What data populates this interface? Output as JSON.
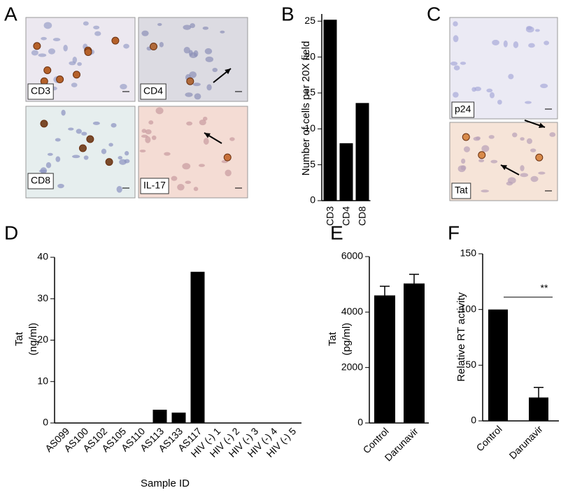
{
  "panel_letters": [
    "A",
    "B",
    "C",
    "D",
    "E",
    "F"
  ],
  "micrographs": {
    "A": [
      "CD3",
      "CD4",
      "CD8",
      "IL-17"
    ],
    "C": [
      "p24",
      "Tat"
    ]
  },
  "chart_data": [
    {
      "type": "bar",
      "categories": [
        "CD3",
        "CD4",
        "CD8"
      ],
      "values": [
        25.2,
        8,
        13.6
      ],
      "color": "#000000",
      "ylim": [
        0,
        26
      ],
      "yticks": [
        0,
        5,
        10,
        15,
        20,
        25
      ],
      "y_label": [
        "Number of cells per 20X field"
      ]
    },
    {
      "type": "bar",
      "categories": [
        "AS099",
        "AS100",
        "AS102",
        "AS105",
        "AS110",
        "AS113",
        "AS133",
        "AS117",
        "HIV (-) 1",
        "HIV (-) 2",
        "HIV (-) 3",
        "HIV (-) 4",
        "HIV (-) 5"
      ],
      "values": [
        0,
        0,
        0,
        0,
        0,
        3.2,
        2.5,
        36.5,
        0,
        0,
        0,
        0,
        0
      ],
      "color": "#000000",
      "ylim": [
        0,
        40
      ],
      "yticks": [
        0,
        10,
        20,
        30,
        40
      ],
      "y_label": [
        "Tat",
        "(ng/ml)"
      ],
      "x_label": "Sample ID"
    },
    {
      "type": "bar",
      "categories": [
        "Control",
        "Darunavir"
      ],
      "values": [
        4600,
        5030
      ],
      "errors": [
        330,
        330
      ],
      "color": "#000000",
      "ylim": [
        0,
        6000
      ],
      "yticks": [
        0,
        2000,
        4000,
        6000
      ],
      "y_label": [
        "Tat",
        "(pg/ml)"
      ]
    },
    {
      "type": "bar",
      "categories": [
        "Control",
        "Darunavir"
      ],
      "values": [
        100,
        21
      ],
      "errors": [
        null,
        9
      ],
      "color": "#000000",
      "ylim": [
        0,
        150
      ],
      "yticks": [
        0,
        50,
        100,
        150
      ],
      "y_label": [
        "Relative RT activity"
      ],
      "annotations": [
        "**"
      ]
    }
  ]
}
